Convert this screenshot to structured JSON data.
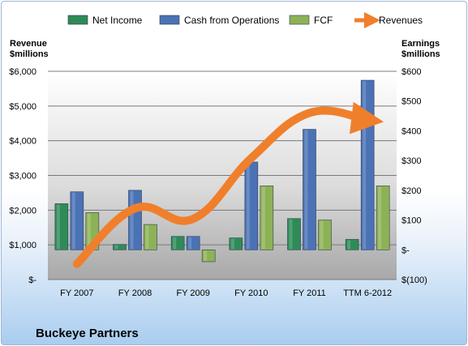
{
  "chart_data": {
    "type": "bar",
    "company": "Buckeye Partners",
    "categories": [
      "FY 2007",
      "FY 2008",
      "FY 2009",
      "FY 2010",
      "FY 2011",
      "TTM 6-2012"
    ],
    "left_axis": {
      "title_line1": "Revenue",
      "title_line2": "$millions",
      "ylim": [
        0,
        6000
      ],
      "ticks": [
        "$-",
        "$1,000",
        "$2,000",
        "$3,000",
        "$4,000",
        "$5,000",
        "$6,000"
      ]
    },
    "right_axis": {
      "title_line1": "Earnings",
      "title_line2": "$millions",
      "ylim": [
        -100,
        600
      ],
      "ticks": [
        "$(100)",
        "$-",
        "$100",
        "$200",
        "$300",
        "$400",
        "$500",
        "$600"
      ]
    },
    "series": [
      {
        "name": "Net Income",
        "type": "bar",
        "axis": "right",
        "color": "#2e8b57",
        "values": [
          155,
          18,
          45,
          40,
          105,
          35
        ]
      },
      {
        "name": "Cash from Operations",
        "type": "bar",
        "axis": "right",
        "color": "#4a72b5",
        "values": [
          195,
          200,
          45,
          295,
          405,
          570
        ]
      },
      {
        "name": "FCF",
        "type": "bar",
        "axis": "right",
        "color": "#8db255",
        "values": [
          125,
          85,
          -40,
          215,
          100,
          215
        ]
      },
      {
        "name": "Revenues",
        "type": "line",
        "axis": "left",
        "color": "#f07f2c",
        "values": [
          450,
          2050,
          1750,
          3500,
          4800,
          4600
        ]
      }
    ],
    "grid": true,
    "legend": "top"
  }
}
